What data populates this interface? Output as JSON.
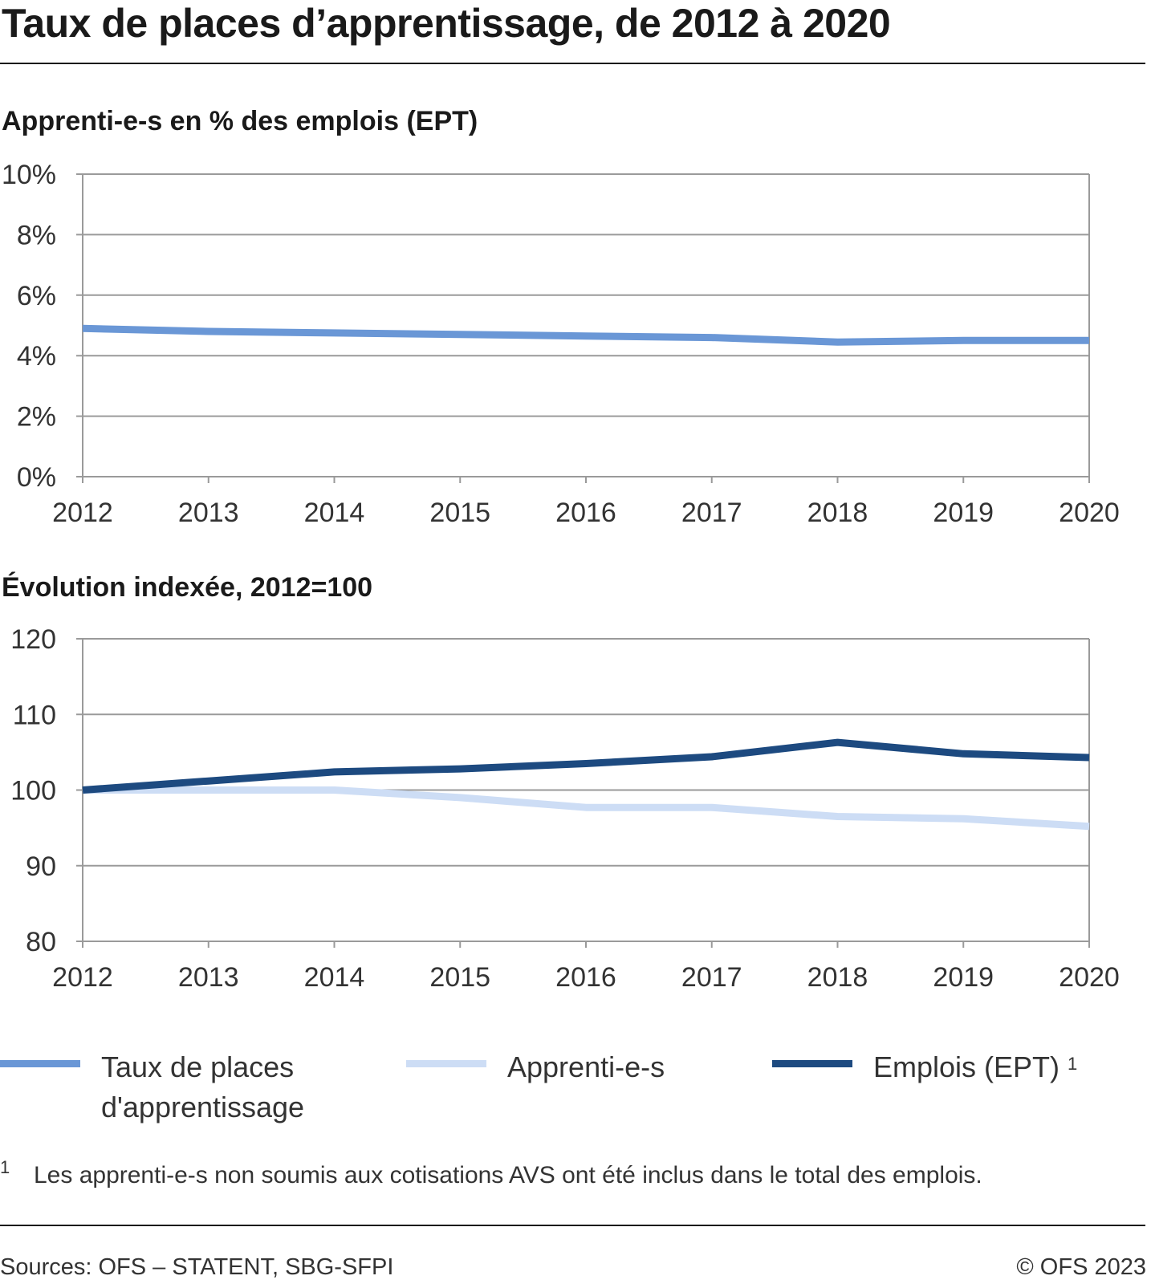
{
  "title": "Taux de places d’apprentissage, de 2012 à 2020",
  "colors": {
    "taux": "#6a97d6",
    "apprentis": "#cdddf5",
    "emplois": "#1d4a80",
    "grid": "#9a9a9a"
  },
  "chart_data": [
    {
      "type": "line",
      "title": "Apprenti-e-s en % des emplois (EPT)",
      "x": [
        "2012",
        "2013",
        "2014",
        "2015",
        "2016",
        "2017",
        "2018",
        "2019",
        "2020"
      ],
      "ylim": [
        0,
        10
      ],
      "yticks": [
        "0%",
        "2%",
        "4%",
        "6%",
        "8%",
        "10%"
      ],
      "ytick_values": [
        0,
        2,
        4,
        6,
        8,
        10
      ],
      "grid": true,
      "series": [
        {
          "name": "Taux de places d'apprentissage",
          "color_key": "taux",
          "values": [
            4.9,
            4.8,
            4.75,
            4.7,
            4.65,
            4.6,
            4.45,
            4.5,
            4.5
          ]
        }
      ]
    },
    {
      "type": "line",
      "title": "Évolution indexée, 2012=100",
      "x": [
        "2012",
        "2013",
        "2014",
        "2015",
        "2016",
        "2017",
        "2018",
        "2019",
        "2020"
      ],
      "ylim": [
        80,
        120
      ],
      "yticks": [
        "80",
        "90",
        "100",
        "110",
        "120"
      ],
      "ytick_values": [
        80,
        90,
        100,
        110,
        120
      ],
      "grid": true,
      "series": [
        {
          "name": "Apprenti-e-s",
          "color_key": "apprentis",
          "values": [
            100,
            100,
            100,
            99,
            97.7,
            97.7,
            96.5,
            96.2,
            95.2
          ]
        },
        {
          "name": "Emplois (EPT)",
          "color_key": "emplois",
          "values": [
            100,
            101.2,
            102.4,
            102.8,
            103.5,
            104.4,
            106.3,
            104.8,
            104.3
          ]
        }
      ]
    }
  ],
  "legend": [
    {
      "label": "Taux de places d'apprentissage",
      "color_key": "taux",
      "sup": ""
    },
    {
      "label": "Apprenti-e-s",
      "color_key": "apprentis",
      "sup": ""
    },
    {
      "label": "Emplois (EPT)",
      "color_key": "emplois",
      "sup": "1"
    }
  ],
  "footnote": {
    "mark": "1",
    "text": "Les apprenti-e-s non soumis aux cotisations AVS ont été inclus dans le total des emplois."
  },
  "source": "Sources: OFS – STATENT, SBG-SFPI",
  "copyright": "© OFS 2023"
}
